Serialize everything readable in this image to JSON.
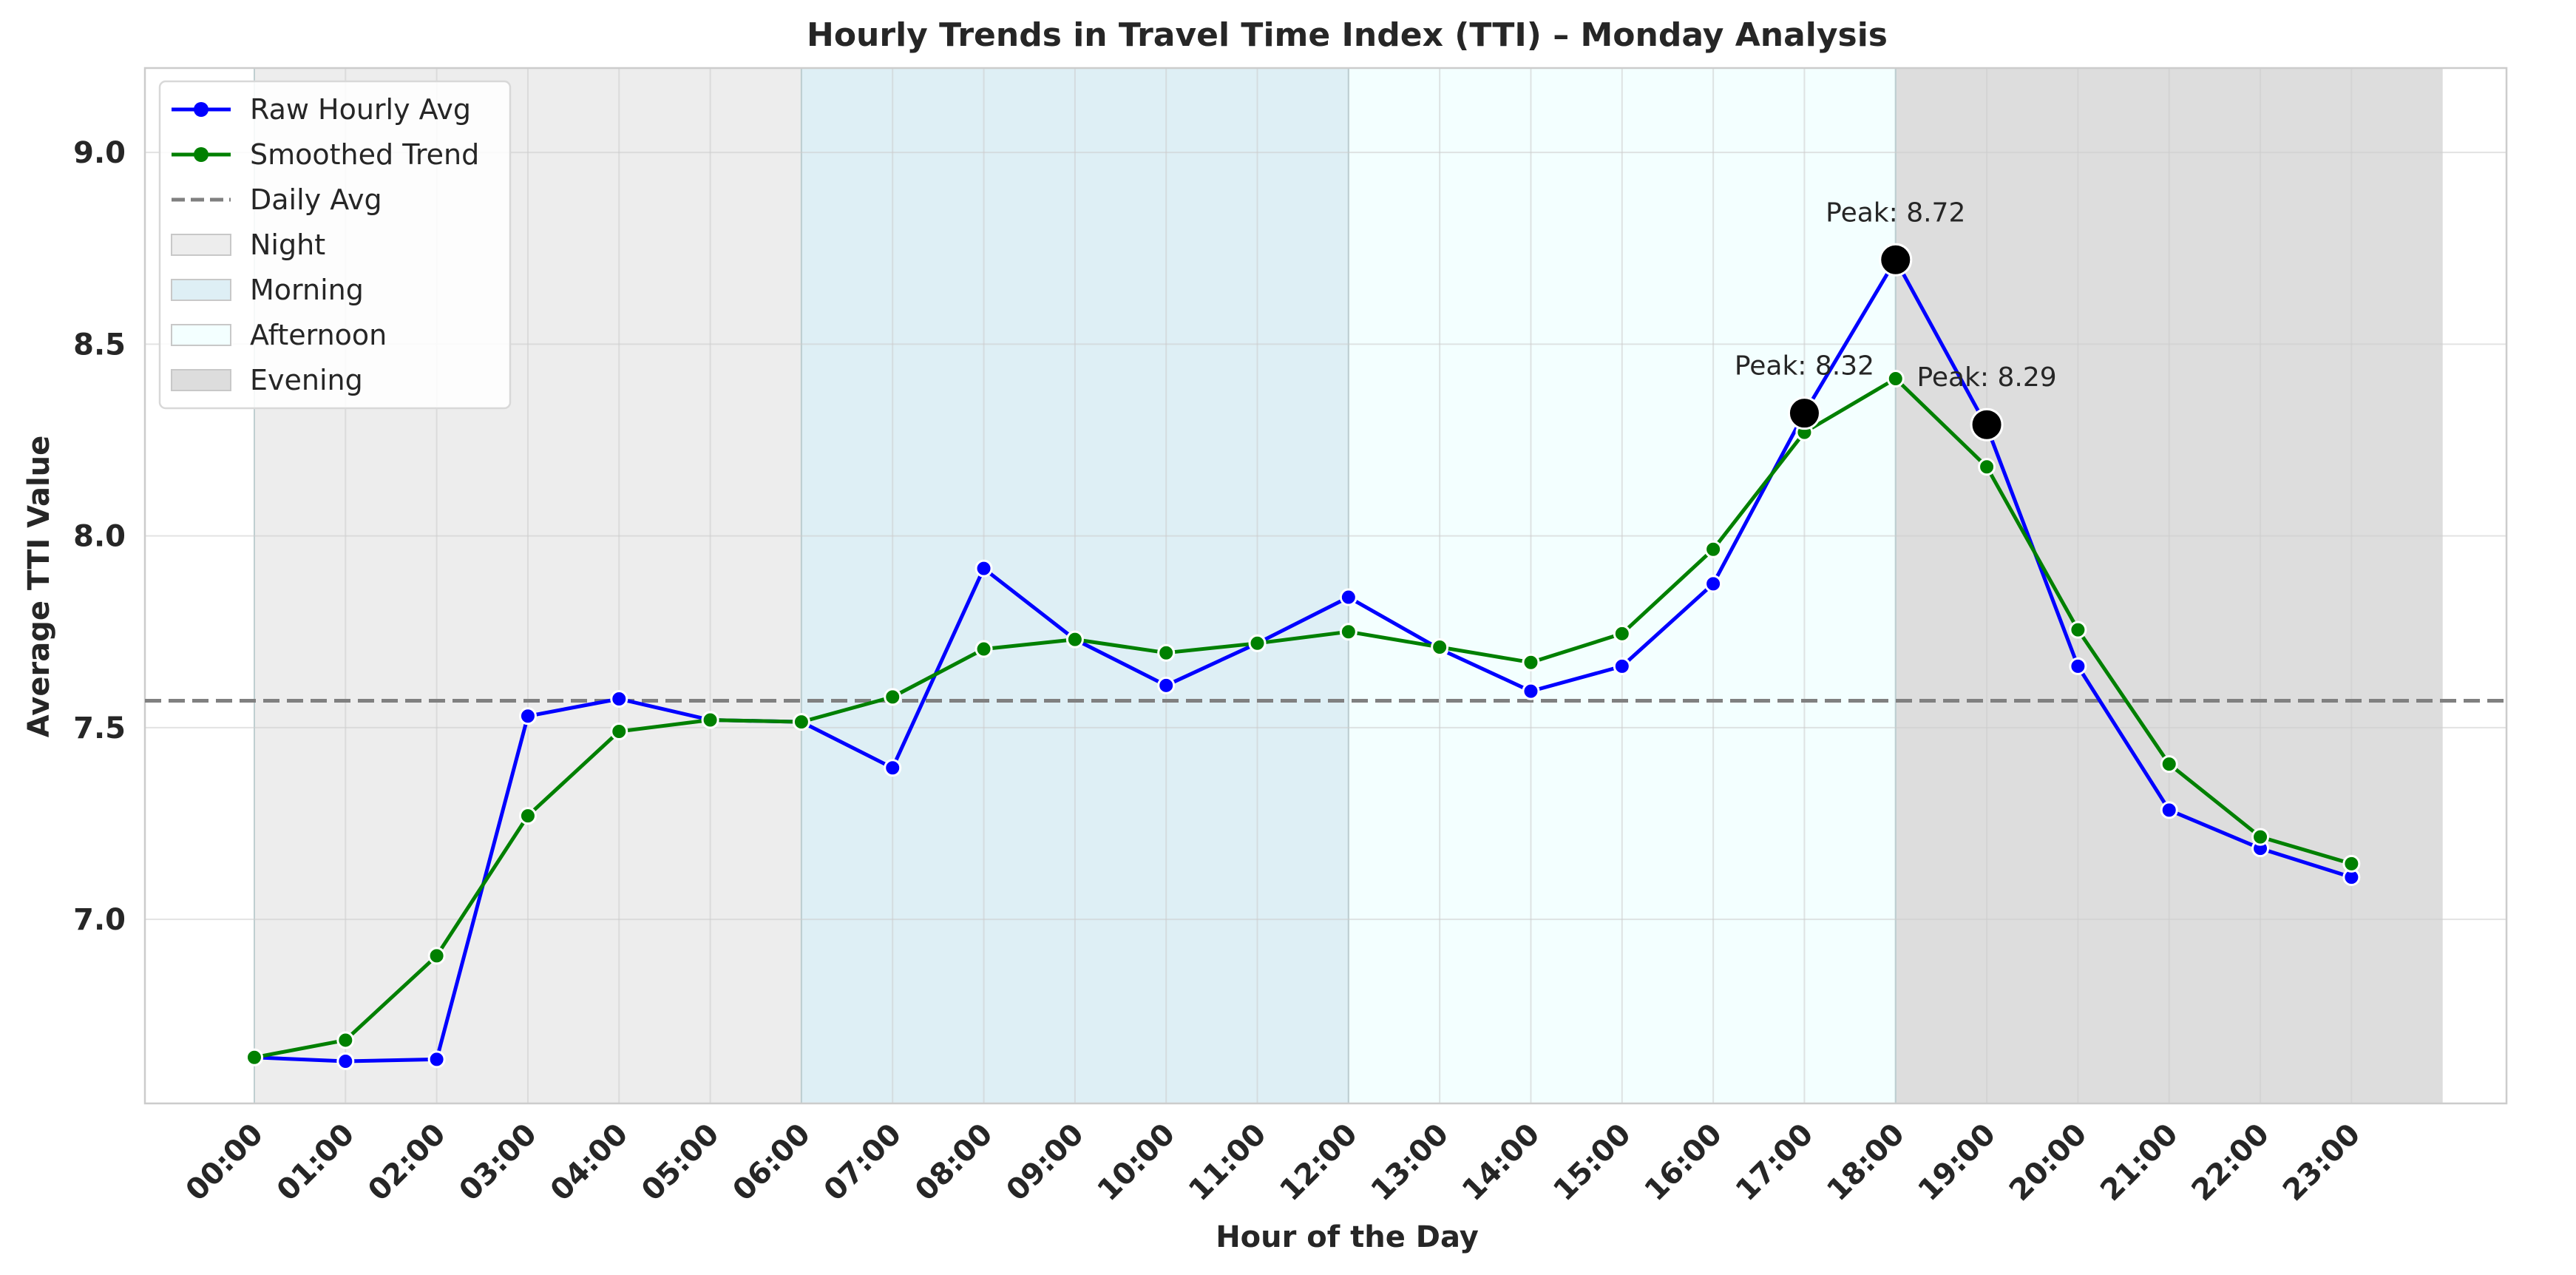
{
  "chart_data": {
    "type": "line",
    "title": "Hourly Trends in Travel Time Index (TTI) – Monday Analysis",
    "xlabel": "Hour of the Day",
    "ylabel": "Average TTI Value",
    "categories": [
      "00:00",
      "01:00",
      "02:00",
      "03:00",
      "04:00",
      "05:00",
      "06:00",
      "07:00",
      "08:00",
      "09:00",
      "10:00",
      "11:00",
      "12:00",
      "13:00",
      "14:00",
      "15:00",
      "16:00",
      "17:00",
      "18:00",
      "19:00",
      "20:00",
      "21:00",
      "22:00",
      "23:00"
    ],
    "y_ticks": [
      "7.0",
      "7.5",
      "8.0",
      "8.5",
      "9.0"
    ],
    "ylim": [
      6.52,
      9.22
    ],
    "xlim": [
      -1.2,
      24.7
    ],
    "grid": true,
    "legend_placement": "upper left",
    "series": [
      {
        "name": "Raw Hourly Avg",
        "color": "#0000ff",
        "values": [
          6.64,
          6.63,
          6.635,
          7.53,
          7.575,
          7.52,
          7.515,
          7.395,
          7.915,
          7.73,
          7.61,
          7.72,
          7.84,
          7.705,
          7.595,
          7.66,
          7.875,
          8.32,
          8.72,
          8.285,
          7.66,
          7.285,
          7.185,
          7.11
        ]
      },
      {
        "name": "Smoothed Trend",
        "color": "#008000",
        "values": [
          6.64,
          6.685,
          6.905,
          7.27,
          7.49,
          7.52,
          7.515,
          7.58,
          7.705,
          7.73,
          7.695,
          7.72,
          7.75,
          7.71,
          7.67,
          7.745,
          7.965,
          8.27,
          8.41,
          8.18,
          7.755,
          7.405,
          7.215,
          7.145
        ]
      }
    ],
    "daily_avg": {
      "name": "Daily Avg",
      "value": 7.57,
      "color": "#808080"
    },
    "periods": [
      {
        "name": "Night",
        "start": 0,
        "end": 6,
        "color": "#d3d3d3"
      },
      {
        "name": "Morning",
        "start": 6,
        "end": 12,
        "color": "#add8e6"
      },
      {
        "name": "Afternoon",
        "start": 12,
        "end": 18,
        "color": "#e0ffff"
      },
      {
        "name": "Evening",
        "start": 18,
        "end": 24,
        "color": "#a9a9a9"
      }
    ],
    "peaks": [
      {
        "hour": 17,
        "value": 8.32,
        "label": "Peak: 8.32"
      },
      {
        "hour": 18,
        "value": 8.72,
        "label": "Peak: 8.72"
      },
      {
        "hour": 19,
        "value": 8.29,
        "label": "Peak: 8.29"
      }
    ]
  }
}
